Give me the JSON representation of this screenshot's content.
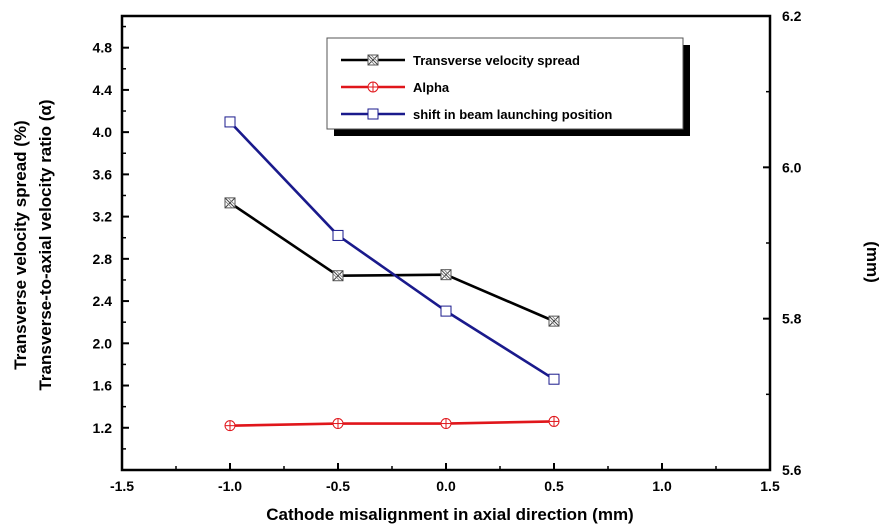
{
  "chart_data": {
    "type": "line",
    "xlabel": "Cathode misalignment in axial direction (mm)",
    "ylabel_lines": [
      "Transverse velocity spread (%)",
      "Transverse-to-axial velocity ratio (α)"
    ],
    "y2label": "(mm)",
    "xlim": [
      -1.5,
      1.5
    ],
    "ylim": [
      0.8,
      5.1
    ],
    "y2lim": [
      5.6,
      6.2
    ],
    "x_ticks": [
      "-1.5",
      "-1.0",
      "-0.5",
      "0.0",
      "0.5",
      "1.0",
      "1.5"
    ],
    "y_ticks": [
      "1.2",
      "1.6",
      "2.0",
      "2.4",
      "2.8",
      "3.2",
      "3.6",
      "4.0",
      "4.4",
      "4.8"
    ],
    "y2_ticks": [
      "5.6",
      "5.8",
      "6.0",
      "6.2"
    ],
    "x": [
      -1.0,
      -0.5,
      0.0,
      0.5
    ],
    "series": [
      {
        "name": "Transverse velocity spread",
        "axis": "left",
        "values": [
          3.33,
          2.64,
          2.65,
          2.21
        ],
        "color": "#000000",
        "marker": "crossed-square"
      },
      {
        "name": "Alpha",
        "axis": "left",
        "values": [
          1.22,
          1.24,
          1.24,
          1.26
        ],
        "color": "#e0161b",
        "marker": "circle-plus"
      },
      {
        "name": "shift in beam launching position",
        "axis": "right",
        "values": [
          6.06,
          5.91,
          5.81,
          5.72
        ],
        "color": "#1a1a8c",
        "marker": "open-square"
      }
    ],
    "legend_position": "top-right",
    "grid": false
  }
}
